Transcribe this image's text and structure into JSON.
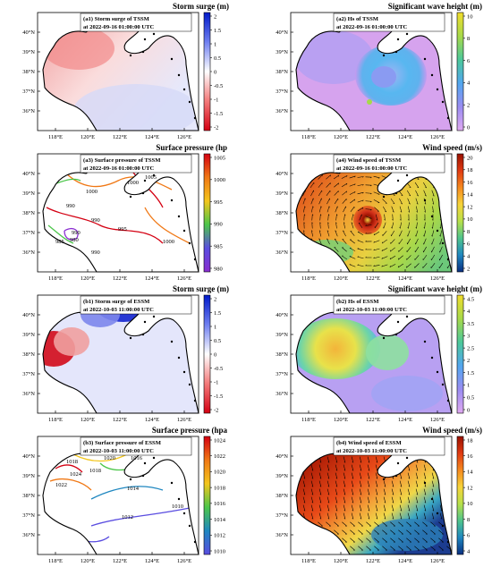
{
  "lon_ticks": [
    "118°E",
    "120°E",
    "122°E",
    "124°E",
    "126°E"
  ],
  "lat_ticks": [
    "40°N",
    "39°N",
    "38°N",
    "37°N",
    "36°N"
  ],
  "panels": [
    {
      "id": "a1",
      "cb_title": "Storm surge (m)",
      "line1": "(a1) Storm surge of TSSM",
      "line2": "at 2022-09-16 01:00:00 UTC",
      "cb_ticks": [
        "2",
        "1.5",
        "1",
        "0.5",
        "0",
        "-0.5",
        "-1",
        "-1.5",
        "-2"
      ],
      "cmap": [
        "#0019c9",
        "#6f7ff0",
        "#ffffff",
        "#f37a7a",
        "#d40012"
      ],
      "field": "surge_a"
    },
    {
      "id": "a2",
      "cb_title": "Significant wave height (m)",
      "line1": "(a2) Hs of TSSM",
      "line2": "at 2022-09-16 01:00:00 UTC",
      "cb_ticks": [
        "10",
        "8",
        "6",
        "4",
        "2",
        "0"
      ],
      "cmap": [
        "#f1dd2c",
        "#a7d94a",
        "#4cc89a",
        "#52a6ef",
        "#9a8cf1",
        "#e0a9f1"
      ],
      "field": "hs_a"
    },
    {
      "id": "a3",
      "cb_title": "Surface pressure (hp",
      "line1": "(a3) Surface pressure of TSSM",
      "line2": "at 2022-09-16 01:00:00 UTC",
      "cb_ticks": [
        "1005",
        "1000",
        "995",
        "990",
        "985",
        "980"
      ],
      "cmap": [
        "#d40012",
        "#f07815",
        "#f3c61d",
        "#4cc64a",
        "#5a4de0",
        "#8a2ed0"
      ],
      "field": "contour_a"
    },
    {
      "id": "a4",
      "cb_title": "Wind speed (m/s)",
      "line1": "(a4) Wind speed of TSSM",
      "line2": "at 2022-09-16 01:00:00 UTC",
      "cb_ticks": [
        "20",
        "18",
        "16",
        "14",
        "12",
        "10",
        "8",
        "6",
        "4",
        "2"
      ],
      "cmap": [
        "#991100",
        "#e03a12",
        "#f58a1f",
        "#f7d43a",
        "#b8e04a",
        "#4fc48c",
        "#1f87c0",
        "#0a2f80"
      ],
      "field": "wind_a"
    },
    {
      "id": "b1",
      "cb_title": "Storm surge (m)",
      "line1": "(b1) Storm surge of ESSM",
      "line2": "at 2022-10-03 11:00:00 UTC",
      "cb_ticks": [
        "2",
        "1.5",
        "1",
        "0.5",
        "0",
        "-0.5",
        "-1",
        "-1.5",
        "-2"
      ],
      "cmap": [
        "#0019c9",
        "#6f7ff0",
        "#ffffff",
        "#f37a7a",
        "#d40012"
      ],
      "field": "surge_b"
    },
    {
      "id": "b2",
      "cb_title": "Significant wave height (m)",
      "line1": "(b2) Hs of ESSM",
      "line2": "at 2022-10-03 11:00:00 UTC",
      "cb_ticks": [
        "4.5",
        "4",
        "3.5",
        "3",
        "2.5",
        "2",
        "1.5",
        "1",
        "0.5",
        "0"
      ],
      "cmap": [
        "#f1dd2c",
        "#a7d94a",
        "#4cc89a",
        "#52a6ef",
        "#9a8cf1",
        "#e0a9f1"
      ],
      "field": "hs_b"
    },
    {
      "id": "b3",
      "cb_title": "Surface pressure (hpa",
      "line1": "(b3) Surface pressure of ESSM",
      "line2": "at 2022-10-03 11:00:00 UTC",
      "cb_ticks": [
        "1024",
        "1022",
        "1020",
        "1018",
        "1016",
        "1014",
        "1012",
        "1010"
      ],
      "cmap": [
        "#d40012",
        "#f07815",
        "#f3c61d",
        "#4cc64a",
        "#1f87c0",
        "#5a4de0"
      ],
      "field": "contour_b"
    },
    {
      "id": "b4",
      "cb_title": "Wind speed (m/s)",
      "line1": "(b4) Wind speed of ESSM",
      "line2": "at 2022-10-03 11:00:00 UTC",
      "cb_ticks": [
        "18",
        "16",
        "14",
        "12",
        "10",
        "8",
        "6",
        "4"
      ],
      "cmap": [
        "#991100",
        "#e03a12",
        "#f58a1f",
        "#f7d43a",
        "#b8e04a",
        "#4fc48c",
        "#1f87c0",
        "#0a2f80"
      ],
      "field": "wind_b"
    }
  ],
  "contour_labels": {
    "a3": [
      "1000",
      "1000",
      "990",
      "990",
      "995",
      "990",
      "980",
      "985",
      "990",
      "1005",
      "1000"
    ],
    "b3": [
      "1018",
      "1024",
      "1022",
      "1020",
      "1018",
      "1016",
      "1014",
      "1012",
      "1010"
    ]
  }
}
